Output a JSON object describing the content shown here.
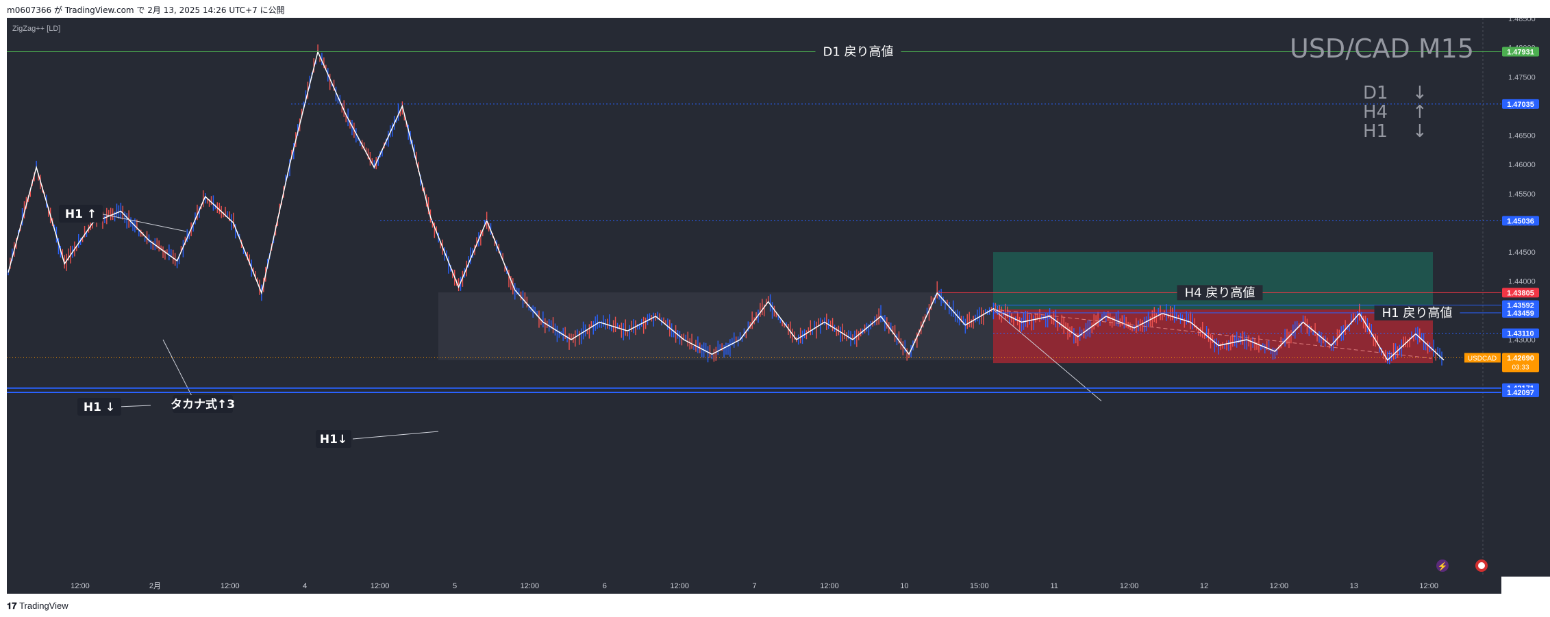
{
  "header": {
    "publish_text": "m0607366 が TradingView.com で 2月 13, 2025 14:26 UTC+7 に公開"
  },
  "footer": {
    "logo_text": "TradingView"
  },
  "indicator": {
    "label": "ZigZag++ [LD]"
  },
  "watermark": {
    "title": "USD/CAD M15",
    "trends": [
      {
        "tf": "D1",
        "arrow": "↓"
      },
      {
        "tf": "H4",
        "arrow": "↑"
      },
      {
        "tf": "H1",
        "arrow": "↓"
      }
    ]
  },
  "colors": {
    "background": "#262a34",
    "up_candle": "#2962ff",
    "down_candle": "#ef5350",
    "zigzag": "#ffffff",
    "green_line": "#4caf50",
    "blue_line": "#2962ff",
    "red_zone": "#b22833",
    "green_zone": "#1f5a52",
    "price_tag": "#ff9800"
  },
  "chart_data": {
    "type": "line",
    "symbol": "USDCAD",
    "timeframe": "M15",
    "ylim": [
      1.418,
      1.4855
    ],
    "price_ticks": [
      "1.48500",
      "1.48000",
      "1.47500",
      "1.47000",
      "1.46500",
      "1.46000",
      "1.45500",
      "1.45000",
      "1.44500",
      "1.44000",
      "1.43500",
      "1.43000"
    ],
    "time_ticks": [
      "12:00",
      "2月",
      "12:00",
      "4",
      "12:00",
      "5",
      "12:00",
      "6",
      "12:00",
      "7",
      "12:00",
      "10",
      "15:00",
      "11",
      "12:00",
      "12",
      "12:00",
      "13",
      "12:00"
    ],
    "zigzag": [
      [
        1.4415,
        1.4595,
        1.443,
        1.45,
        1.452,
        1.447,
        1.4435,
        1.4545,
        1.45,
        1.438,
        1.46,
        1.4793,
        1.4685,
        1.4595,
        1.47,
        1.451,
        1.439,
        1.4504,
        1.4385,
        1.433,
        1.43,
        1.433,
        1.4315,
        1.434,
        1.43,
        1.4275,
        1.43,
        1.4365,
        1.43,
        1.433,
        1.43,
        1.434,
        1.4275,
        1.438,
        1.4325,
        1.4353,
        1.433,
        1.434,
        1.4305,
        1.434,
        1.432,
        1.4345,
        1.433,
        1.429,
        1.43,
        1.428,
        1.433,
        1.429,
        1.4345,
        1.4265,
        1.431,
        1.4265
      ]
    ],
    "zigzag_x_index_note": "",
    "levels": [
      {
        "label": "D1 戻り高値",
        "value": "1.47931",
        "price": 1.47931,
        "color": "#4caf50"
      },
      {
        "label": "",
        "value": "1.47035",
        "price": 1.47035,
        "color": "#2962ff"
      },
      {
        "label": "",
        "value": "1.45036",
        "price": 1.45036,
        "color": "#2962ff"
      },
      {
        "label": "H4 戻り高値",
        "value": "1.43805",
        "price": 1.43805,
        "color": "#f23645"
      },
      {
        "label": "",
        "value": "1.43592",
        "price": 1.43592,
        "color": "#2962ff"
      },
      {
        "label": "H1 戻り高値",
        "value": "1.43459",
        "price": 1.43459,
        "color": "#2962ff"
      },
      {
        "label": "",
        "value": "1.43110",
        "price": 1.4311,
        "color": "#2962ff"
      },
      {
        "label": "",
        "value": "1.42171",
        "price": 1.42171,
        "color": "#2962ff"
      },
      {
        "label": "",
        "value": "1.42097",
        "price": 1.42097,
        "color": "#2962ff"
      }
    ],
    "current_price": {
      "symbol": "USDCAD",
      "value": "1.42690",
      "countdown": "03:33"
    },
    "annotations": [
      {
        "text": "H1 ↑"
      },
      {
        "text": "H1 ↓"
      },
      {
        "text": "タカナ式↑3"
      },
      {
        "text": "H1↓"
      }
    ]
  }
}
